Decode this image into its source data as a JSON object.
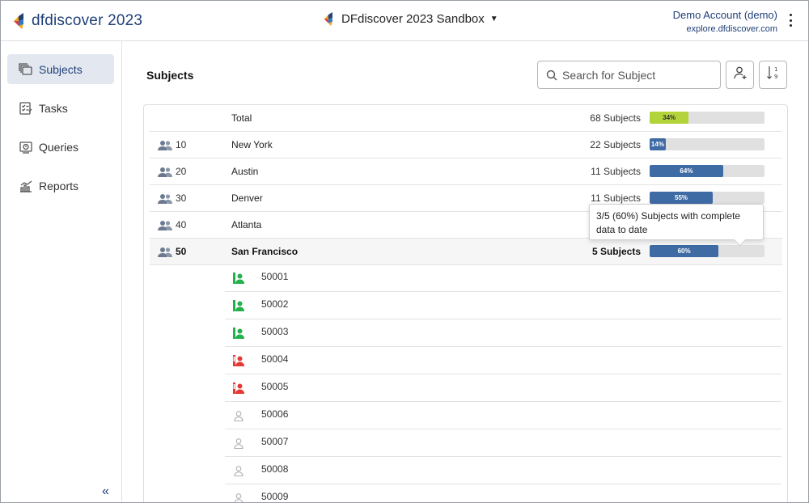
{
  "header": {
    "logo_text": "dfdiscover 2023",
    "study_name": "DFdiscover 2023 Sandbox",
    "account_name": "Demo Account (demo)",
    "account_host": "explore.dfdiscover.com"
  },
  "sidebar": {
    "items": [
      {
        "label": "Subjects",
        "icon": "subjects-icon",
        "active": true
      },
      {
        "label": "Tasks",
        "icon": "tasks-icon"
      },
      {
        "label": "Queries",
        "icon": "queries-icon"
      },
      {
        "label": "Reports",
        "icon": "reports-icon"
      }
    ],
    "collapse_glyph": "«"
  },
  "main": {
    "title": "Subjects",
    "search_placeholder": "Search for Subject"
  },
  "sites": [
    {
      "num": "",
      "name": "Total",
      "count": "68 Subjects",
      "pct_label": "34%",
      "pct": 34,
      "color": "green"
    },
    {
      "num": "10",
      "name": "New York",
      "count": "22 Subjects",
      "pct_label": "14%",
      "pct": 14
    },
    {
      "num": "20",
      "name": "Austin",
      "count": "11 Subjects",
      "pct_label": "64%",
      "pct": 64
    },
    {
      "num": "30",
      "name": "Denver",
      "count": "11 Subjects",
      "pct_label": "55%",
      "pct": 55
    },
    {
      "num": "40",
      "name": "Atlanta",
      "count": "",
      "pct_label": "",
      "pct": 0
    },
    {
      "num": "50",
      "name": "San Francisco",
      "count": "5 Subjects",
      "pct_label": "60%",
      "pct": 60,
      "selected": true
    }
  ],
  "tooltip": "3/5 (60%) Subjects with complete data to date",
  "subjects": [
    {
      "id": "50001",
      "status": "complete",
      "color": "#22b14c"
    },
    {
      "id": "50002",
      "status": "complete",
      "color": "#22b14c"
    },
    {
      "id": "50003",
      "status": "complete",
      "color": "#22b14c"
    },
    {
      "id": "50004",
      "status": "error",
      "color": "#e53935"
    },
    {
      "id": "50005",
      "status": "error",
      "color": "#e53935"
    },
    {
      "id": "50006",
      "status": "empty",
      "color": "#b0b0b0"
    },
    {
      "id": "50007",
      "status": "empty",
      "color": "#b0b0b0"
    },
    {
      "id": "50008",
      "status": "empty",
      "color": "#b0b0b0"
    },
    {
      "id": "50009",
      "status": "empty",
      "color": "#b0b0b0"
    }
  ]
}
